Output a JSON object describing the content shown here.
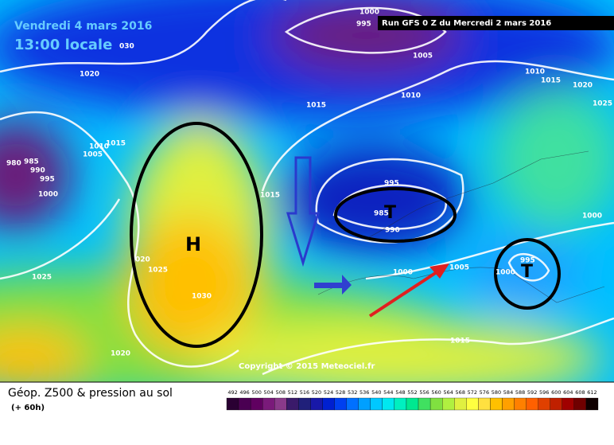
{
  "header": {
    "date": "Vendredi 4 mars 2016",
    "time": "13:00 locale",
    "run": "Run GFS 0 Z du Mercredi 2 mars 2016"
  },
  "map": {
    "copyright": "Copyright © 2015 Meteociel.fr",
    "centers": [
      "H",
      "T",
      "T"
    ],
    "isobar_labels": [
      "1000",
      "995",
      "1005",
      "1010",
      "1015",
      "1020",
      "1010",
      "1015",
      "1005",
      "980",
      "985",
      "990",
      "995",
      "1000",
      "1015",
      "995",
      "985",
      "990",
      "1000",
      "1005",
      "995",
      "1000",
      "1000",
      "1010",
      "1015",
      "1020",
      "1025",
      "020",
      "1025",
      "1030",
      "1025",
      "1020",
      "1015",
      "030"
    ]
  },
  "footer": {
    "title": "Géop. Z500 & pression au sol",
    "lead": "(+ 60h)"
  },
  "colorbar": {
    "ticks": [
      492,
      496,
      500,
      504,
      508,
      512,
      516,
      520,
      524,
      528,
      532,
      536,
      540,
      544,
      548,
      552,
      556,
      560,
      564,
      568,
      572,
      576,
      580,
      584,
      588,
      592,
      596,
      600,
      604,
      608,
      612
    ],
    "colors": [
      "#2a0033",
      "#4a0052",
      "#600060",
      "#7a1a7a",
      "#8a3a8a",
      "#3a1a6a",
      "#20207a",
      "#1818a8",
      "#0020d0",
      "#0040f0",
      "#0070ff",
      "#00a0ff",
      "#00c8ff",
      "#00e8f0",
      "#00f0c0",
      "#00e890",
      "#40e060",
      "#80e040",
      "#b0f040",
      "#e0f040",
      "#ffff40",
      "#ffe040",
      "#ffc000",
      "#ffa000",
      "#ff8000",
      "#ff6000",
      "#e04000",
      "#c02000",
      "#a00000",
      "#700000",
      "#100000"
    ]
  }
}
